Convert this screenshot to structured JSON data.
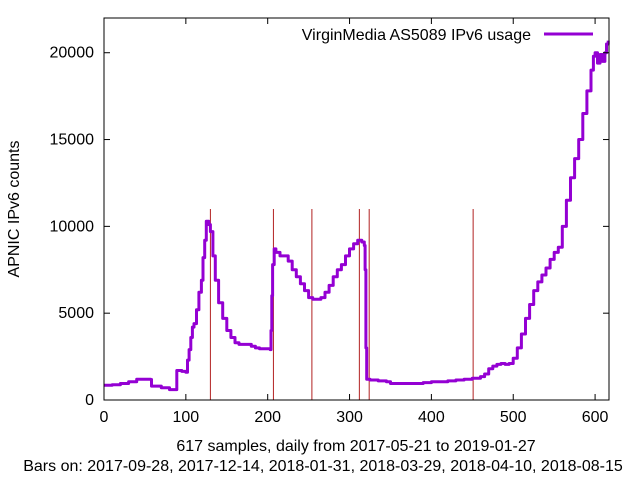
{
  "chart_data": {
    "type": "line",
    "title": "",
    "xlabel": "617 samples, daily from 2017-05-21 to 2019-01-27",
    "footnote": "Bars on:  2017-09-28, 2017-12-14, 2018-01-31, 2018-03-29, 2018-04-10, 2018-08-15",
    "ylabel": "APNIC IPv6 counts",
    "xlim": [
      0,
      617
    ],
    "ylim": [
      0,
      22000
    ],
    "x_ticks": [
      0,
      100,
      200,
      300,
      400,
      500,
      600
    ],
    "y_ticks": [
      0,
      5000,
      10000,
      15000,
      20000
    ],
    "grid": false,
    "legend": "top-right",
    "series": [
      {
        "name": "VirginMedia AS5089 IPv6 usage",
        "color": "#9400d3",
        "points": [
          [
            0,
            850
          ],
          [
            10,
            880
          ],
          [
            20,
            950
          ],
          [
            30,
            1050
          ],
          [
            40,
            1200
          ],
          [
            50,
            1200
          ],
          [
            57,
            1180
          ],
          [
            58,
            800
          ],
          [
            70,
            700
          ],
          [
            80,
            600
          ],
          [
            88,
            600
          ],
          [
            89,
            1700
          ],
          [
            95,
            1650
          ],
          [
            100,
            1600
          ],
          [
            102,
            2300
          ],
          [
            104,
            2900
          ],
          [
            106,
            3600
          ],
          [
            108,
            4200
          ],
          [
            110,
            4400
          ],
          [
            113,
            5200
          ],
          [
            116,
            6200
          ],
          [
            119,
            6900
          ],
          [
            121,
            8200
          ],
          [
            123,
            9200
          ],
          [
            125,
            10300
          ],
          [
            128,
            10100
          ],
          [
            130,
            9700
          ],
          [
            133,
            8300
          ],
          [
            136,
            6900
          ],
          [
            140,
            5600
          ],
          [
            145,
            4700
          ],
          [
            150,
            4000
          ],
          [
            155,
            3600
          ],
          [
            160,
            3300
          ],
          [
            165,
            3200
          ],
          [
            175,
            3200
          ],
          [
            180,
            3100
          ],
          [
            185,
            3000
          ],
          [
            190,
            2950
          ],
          [
            200,
            2950
          ],
          [
            203,
            2900
          ],
          [
            204,
            4000
          ],
          [
            205,
            6000
          ],
          [
            206,
            7800
          ],
          [
            208,
            8700
          ],
          [
            210,
            8500
          ],
          [
            215,
            8300
          ],
          [
            220,
            8300
          ],
          [
            225,
            8000
          ],
          [
            230,
            7500
          ],
          [
            235,
            7100
          ],
          [
            240,
            6700
          ],
          [
            245,
            6300
          ],
          [
            250,
            5900
          ],
          [
            255,
            5800
          ],
          [
            260,
            5800
          ],
          [
            265,
            5900
          ],
          [
            270,
            6200
          ],
          [
            275,
            6600
          ],
          [
            280,
            7100
          ],
          [
            285,
            7500
          ],
          [
            290,
            7800
          ],
          [
            295,
            8300
          ],
          [
            300,
            8700
          ],
          [
            305,
            9000
          ],
          [
            310,
            9200
          ],
          [
            315,
            9100
          ],
          [
            318,
            8900
          ],
          [
            319,
            7500
          ],
          [
            320,
            3000
          ],
          [
            321,
            1200
          ],
          [
            325,
            1150
          ],
          [
            335,
            1100
          ],
          [
            345,
            1050
          ],
          [
            350,
            950
          ],
          [
            360,
            950
          ],
          [
            370,
            950
          ],
          [
            380,
            950
          ],
          [
            390,
            1000
          ],
          [
            400,
            1050
          ],
          [
            410,
            1050
          ],
          [
            420,
            1100
          ],
          [
            430,
            1150
          ],
          [
            440,
            1200
          ],
          [
            450,
            1250
          ],
          [
            460,
            1350
          ],
          [
            465,
            1500
          ],
          [
            470,
            1800
          ],
          [
            475,
            1950
          ],
          [
            480,
            2050
          ],
          [
            485,
            2100
          ],
          [
            490,
            2050
          ],
          [
            495,
            2100
          ],
          [
            500,
            2400
          ],
          [
            505,
            3000
          ],
          [
            510,
            3800
          ],
          [
            515,
            4700
          ],
          [
            520,
            5500
          ],
          [
            525,
            6300
          ],
          [
            530,
            6800
          ],
          [
            535,
            7200
          ],
          [
            540,
            7600
          ],
          [
            545,
            8100
          ],
          [
            550,
            8500
          ],
          [
            555,
            8800
          ],
          [
            560,
            10000
          ],
          [
            565,
            11500
          ],
          [
            570,
            12800
          ],
          [
            575,
            13900
          ],
          [
            580,
            15000
          ],
          [
            585,
            16500
          ],
          [
            590,
            17800
          ],
          [
            595,
            19000
          ],
          [
            598,
            19800
          ],
          [
            600,
            20000
          ],
          [
            603,
            19400
          ],
          [
            606,
            19900
          ],
          [
            609,
            19500
          ],
          [
            612,
            20000
          ],
          [
            614,
            20500
          ],
          [
            616,
            20700
          ]
        ]
      }
    ],
    "event_bars": {
      "color": "#b22222",
      "x": [
        130,
        207,
        254,
        312,
        324,
        451
      ],
      "top": 11000
    }
  }
}
